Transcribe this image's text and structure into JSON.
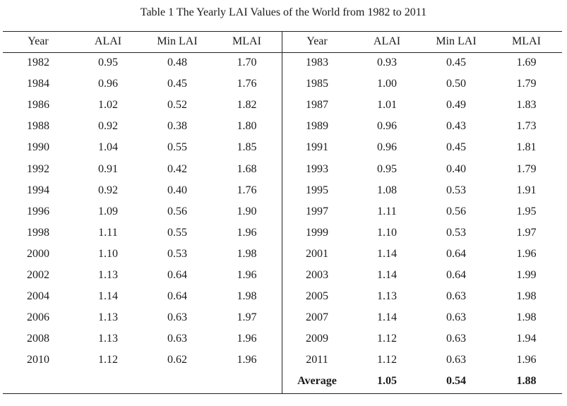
{
  "caption": "Table 1 The Yearly LAI Values of the World from 1982 to 2011",
  "headers": [
    "Year",
    "ALAI",
    "Min LAI",
    "MLAI",
    "Year",
    "ALAI",
    "Min LAI",
    "MLAI"
  ],
  "rows": [
    [
      "1982",
      "0.95",
      "0.48",
      "1.70",
      "1983",
      "0.93",
      "0.45",
      "1.69"
    ],
    [
      "1984",
      "0.96",
      "0.45",
      "1.76",
      "1985",
      "1.00",
      "0.50",
      "1.79"
    ],
    [
      "1986",
      "1.02",
      "0.52",
      "1.82",
      "1987",
      "1.01",
      "0.49",
      "1.83"
    ],
    [
      "1988",
      "0.92",
      "0.38",
      "1.80",
      "1989",
      "0.96",
      "0.43",
      "1.73"
    ],
    [
      "1990",
      "1.04",
      "0.55",
      "1.85",
      "1991",
      "0.96",
      "0.45",
      "1.81"
    ],
    [
      "1992",
      "0.91",
      "0.42",
      "1.68",
      "1993",
      "0.95",
      "0.40",
      "1.79"
    ],
    [
      "1994",
      "0.92",
      "0.40",
      "1.76",
      "1995",
      "1.08",
      "0.53",
      "1.91"
    ],
    [
      "1996",
      "1.09",
      "0.56",
      "1.90",
      "1997",
      "1.11",
      "0.56",
      "1.95"
    ],
    [
      "1998",
      "1.11",
      "0.55",
      "1.96",
      "1999",
      "1.10",
      "0.53",
      "1.97"
    ],
    [
      "2000",
      "1.10",
      "0.53",
      "1.98",
      "2001",
      "1.14",
      "0.64",
      "1.96"
    ],
    [
      "2002",
      "1.13",
      "0.64",
      "1.96",
      "2003",
      "1.14",
      "0.64",
      "1.99"
    ],
    [
      "2004",
      "1.14",
      "0.64",
      "1.98",
      "2005",
      "1.13",
      "0.63",
      "1.98"
    ],
    [
      "2006",
      "1.13",
      "0.63",
      "1.97",
      "2007",
      "1.14",
      "0.63",
      "1.98"
    ],
    [
      "2008",
      "1.13",
      "0.63",
      "1.96",
      "2009",
      "1.12",
      "0.63",
      "1.94"
    ],
    [
      "2010",
      "1.12",
      "0.62",
      "1.96",
      "2011",
      "1.12",
      "0.63",
      "1.96"
    ]
  ],
  "average": {
    "label": "Average",
    "alai": "1.05",
    "min_lai": "0.54",
    "mlai": "1.88"
  },
  "chart_data": {
    "type": "table",
    "title": "Table 1 The Yearly LAI Values of the World from 1982 to 2011",
    "columns": [
      "Year",
      "ALAI",
      "Min LAI",
      "MLAI"
    ],
    "records": [
      [
        1982,
        0.95,
        0.48,
        1.7
      ],
      [
        1983,
        0.93,
        0.45,
        1.69
      ],
      [
        1984,
        0.96,
        0.45,
        1.76
      ],
      [
        1985,
        1.0,
        0.5,
        1.79
      ],
      [
        1986,
        1.02,
        0.52,
        1.82
      ],
      [
        1987,
        1.01,
        0.49,
        1.83
      ],
      [
        1988,
        0.92,
        0.38,
        1.8
      ],
      [
        1989,
        0.96,
        0.43,
        1.73
      ],
      [
        1990,
        1.04,
        0.55,
        1.85
      ],
      [
        1991,
        0.96,
        0.45,
        1.81
      ],
      [
        1992,
        0.91,
        0.42,
        1.68
      ],
      [
        1993,
        0.95,
        0.4,
        1.79
      ],
      [
        1994,
        0.92,
        0.4,
        1.76
      ],
      [
        1995,
        1.08,
        0.53,
        1.91
      ],
      [
        1996,
        1.09,
        0.56,
        1.9
      ],
      [
        1997,
        1.11,
        0.56,
        1.95
      ],
      [
        1998,
        1.11,
        0.55,
        1.96
      ],
      [
        1999,
        1.1,
        0.53,
        1.97
      ],
      [
        2000,
        1.1,
        0.53,
        1.98
      ],
      [
        2001,
        1.14,
        0.64,
        1.96
      ],
      [
        2002,
        1.13,
        0.64,
        1.96
      ],
      [
        2003,
        1.14,
        0.64,
        1.99
      ],
      [
        2004,
        1.14,
        0.64,
        1.98
      ],
      [
        2005,
        1.13,
        0.63,
        1.98
      ],
      [
        2006,
        1.13,
        0.63,
        1.97
      ],
      [
        2007,
        1.14,
        0.63,
        1.98
      ],
      [
        2008,
        1.13,
        0.63,
        1.96
      ],
      [
        2009,
        1.12,
        0.63,
        1.94
      ],
      [
        2010,
        1.12,
        0.62,
        1.96
      ],
      [
        2011,
        1.12,
        0.63,
        1.96
      ]
    ],
    "average": {
      "ALAI": 1.05,
      "Min LAI": 0.54,
      "MLAI": 1.88
    }
  }
}
